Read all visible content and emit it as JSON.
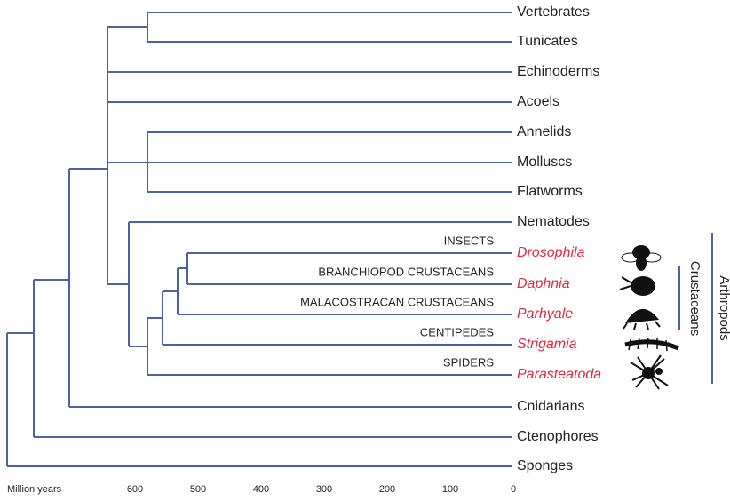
{
  "leaves": [
    {
      "label": "Vertebrates"
    },
    {
      "label": "Tunicates"
    },
    {
      "label": "Echinoderms"
    },
    {
      "label": "Acoels"
    },
    {
      "label": "Annelids"
    },
    {
      "label": "Molluscs"
    },
    {
      "label": "Flatworms"
    },
    {
      "label": "Nematodes"
    },
    {
      "label": "Drosophila",
      "group": "INSECTS",
      "color": "#e4253b"
    },
    {
      "label": "Daphnia",
      "group": "BRANCHIOPOD CRUSTACEANS",
      "color": "#e4253b"
    },
    {
      "label": "Parhyale",
      "group": "MALACOSTRACAN CRUSTACEANS",
      "color": "#e4253b"
    },
    {
      "label": "Strigamia",
      "group": "CENTIPEDES",
      "color": "#e4253b"
    },
    {
      "label": "Parasteatoda",
      "group": "SPIDERS",
      "color": "#e4253b"
    },
    {
      "label": "Cnidarians"
    },
    {
      "label": "Ctenophores"
    },
    {
      "label": "Sponges"
    }
  ],
  "clades": {
    "crustaceans": "Crustaceans",
    "arthropods": "Arthropods"
  },
  "axis": {
    "label": "Million years",
    "ticks": [
      600,
      500,
      400,
      300,
      200,
      100,
      0
    ]
  }
}
